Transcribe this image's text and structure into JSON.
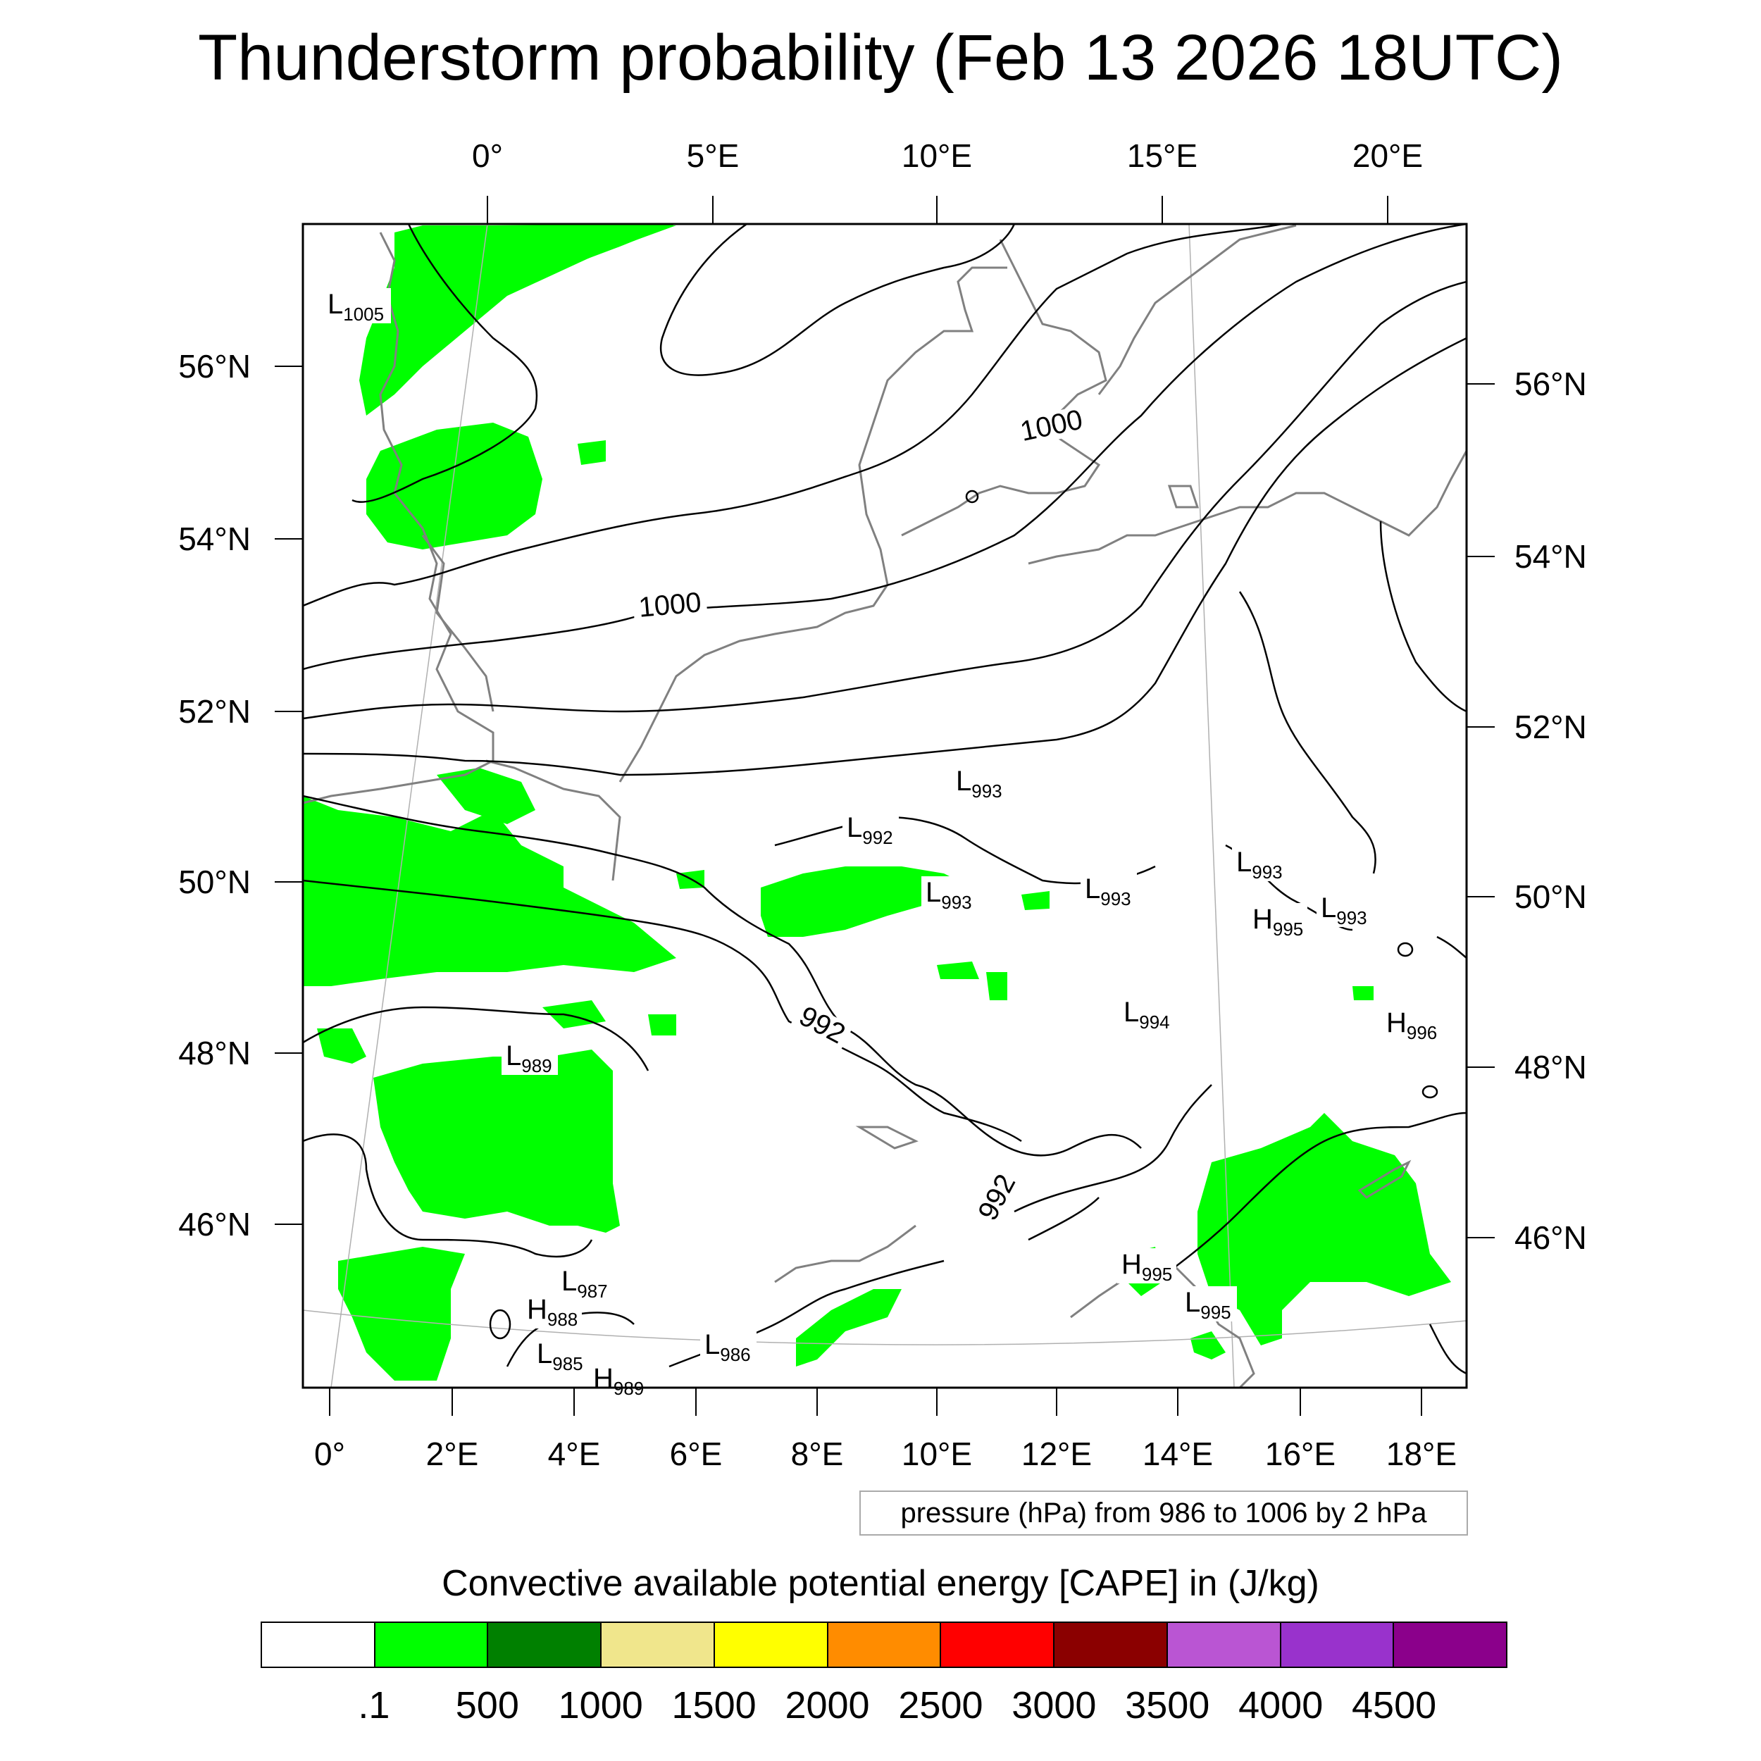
{
  "title": "Thunderstorm probability (Feb 13 2026 18UTC)",
  "top_lon_labels": [
    "0°",
    "5°E",
    "10°E",
    "15°E",
    "20°E"
  ],
  "bottom_lon_labels": [
    "0°",
    "2°E",
    "4°E",
    "6°E",
    "8°E",
    "10°E",
    "12°E",
    "14°E",
    "16°E",
    "18°E"
  ],
  "left_lat_labels": [
    "56°N",
    "54°N",
    "52°N",
    "50°N",
    "48°N",
    "46°N"
  ],
  "right_lat_labels": [
    "56°N",
    "54°N",
    "52°N",
    "50°N",
    "48°N",
    "46°N"
  ],
  "isobar_labels": [
    "1000",
    "1000",
    "992",
    "992"
  ],
  "pressure_centers": [
    {
      "type": "L",
      "value": "1005"
    },
    {
      "type": "L",
      "value": "993"
    },
    {
      "type": "L",
      "value": "992"
    },
    {
      "type": "L",
      "value": "993"
    },
    {
      "type": "L",
      "value": "993"
    },
    {
      "type": "L",
      "value": "993"
    },
    {
      "type": "H",
      "value": "995"
    },
    {
      "type": "L",
      "value": "993"
    },
    {
      "type": "L",
      "value": "994"
    },
    {
      "type": "H",
      "value": "996"
    },
    {
      "type": "L",
      "value": "989"
    },
    {
      "type": "L",
      "value": "987"
    },
    {
      "type": "H",
      "value": "988"
    },
    {
      "type": "L",
      "value": "985"
    },
    {
      "type": "H",
      "value": "989"
    },
    {
      "type": "L",
      "value": "986"
    },
    {
      "type": "H",
      "value": "995"
    },
    {
      "type": "L",
      "value": "995"
    }
  ],
  "info_box": "pressure (hPa) from 986 to 1006 by 2 hPa",
  "colorbar": {
    "title": "Convective available potential energy [CAPE] in (J/kg)",
    "colors": [
      "#ffffff",
      "#00ff00",
      "#008000",
      "#f0e68c",
      "#ffff00",
      "#ff8c00",
      "#ff0000",
      "#8b0000",
      "#ba55d3",
      "#9932cc",
      "#8b008b"
    ],
    "tick_labels": [
      ".1",
      "500",
      "1000",
      "1500",
      "2000",
      "2500",
      "3000",
      "3500",
      "4000",
      "4500"
    ]
  },
  "colors": {
    "cape_low": "#00ff00",
    "isobar": "#000000",
    "coastline": "#808080"
  }
}
